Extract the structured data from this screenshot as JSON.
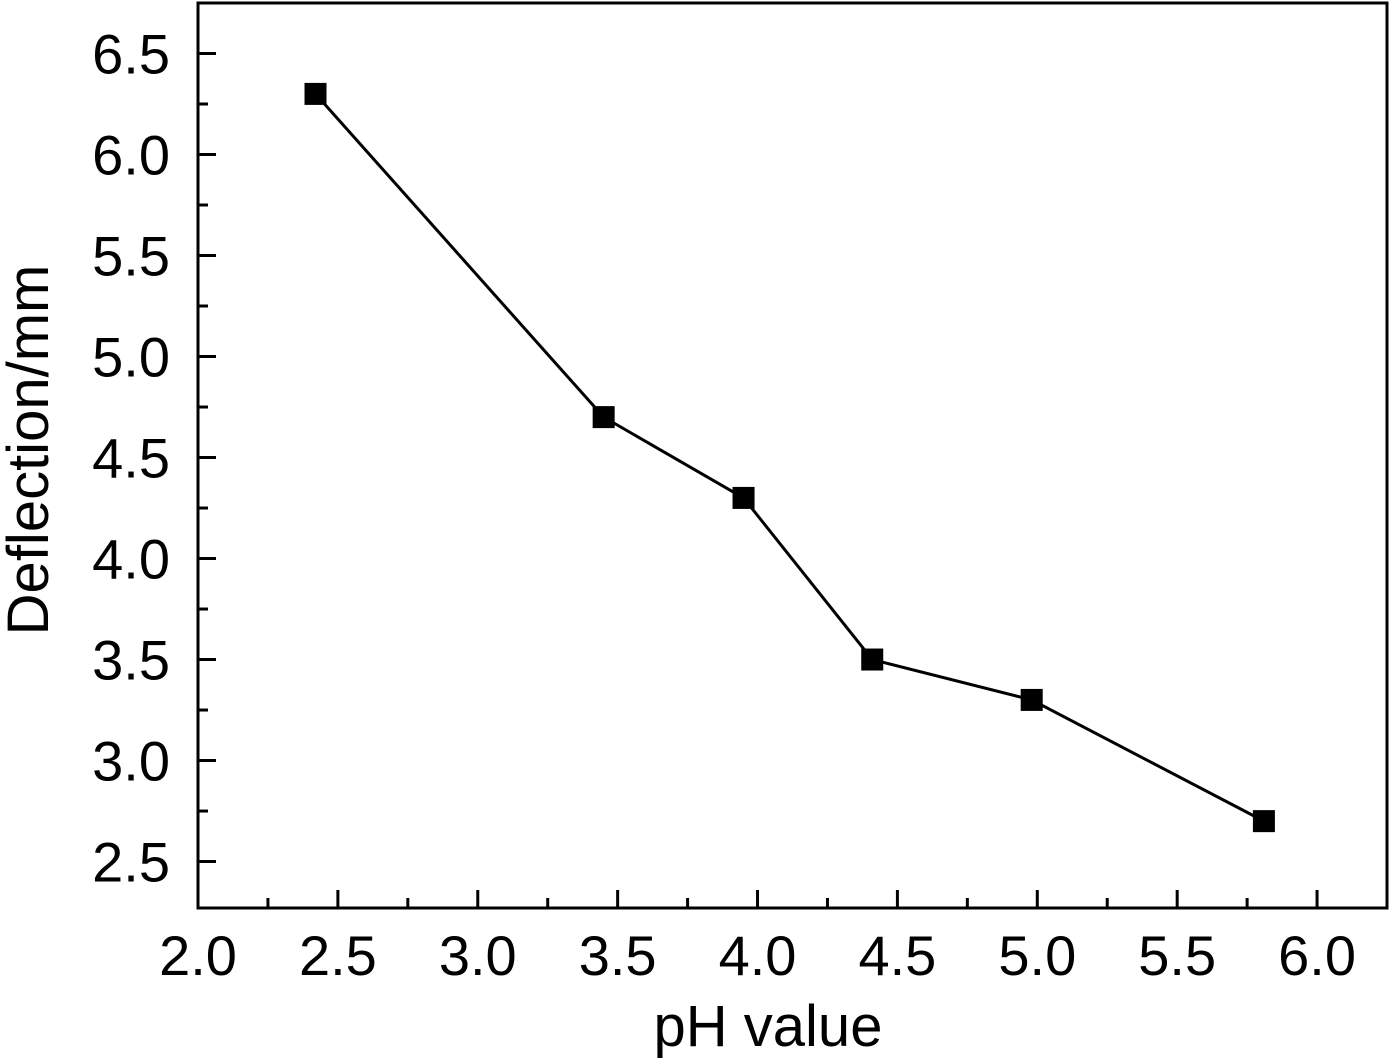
{
  "chart_data": {
    "type": "line",
    "title": "",
    "xlabel": "pH value",
    "ylabel": "Deflection/mm",
    "xlim": [
      2.0,
      6.25
    ],
    "ylim": [
      2.27,
      6.75
    ],
    "x_ticks": [
      "2.0",
      "2.5",
      "3.0",
      "3.5",
      "4.0",
      "4.5",
      "5.0",
      "5.5",
      "6.0"
    ],
    "y_ticks": [
      "2.5",
      "3.0",
      "3.5",
      "4.0",
      "4.5",
      "5.0",
      "5.5",
      "6.0",
      "6.5"
    ],
    "grid": false,
    "marker": "square",
    "series": [
      {
        "x": [
          2.42,
          3.45,
          3.95,
          4.41,
          4.98,
          5.81
        ],
        "y": [
          6.3,
          4.7,
          4.3,
          3.5,
          3.3,
          2.7
        ],
        "color": "#000000"
      }
    ]
  }
}
